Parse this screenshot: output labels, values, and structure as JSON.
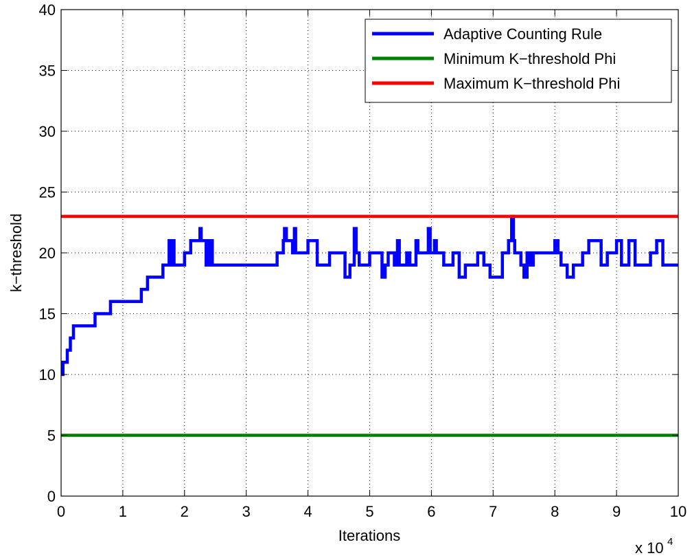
{
  "chart_data": {
    "type": "line",
    "title": "",
    "xlabel": "Iterations",
    "ylabel": "k−threshold",
    "x_multiplier_label": {
      "base": "x 10",
      "exponent": "4"
    },
    "xlim": [
      0,
      10
    ],
    "ylim": [
      0,
      40
    ],
    "x_ticks": [
      0,
      1,
      2,
      3,
      4,
      5,
      6,
      7,
      8,
      9,
      10
    ],
    "y_ticks": [
      0,
      5,
      10,
      15,
      20,
      25,
      30,
      35,
      40
    ],
    "x_tick_labels": [
      "0",
      "1",
      "2",
      "3",
      "4",
      "5",
      "6",
      "7",
      "8",
      "9",
      "10"
    ],
    "y_tick_labels": [
      "0",
      "5",
      "10",
      "15",
      "20",
      "25",
      "30",
      "35",
      "40"
    ],
    "grid": true,
    "legend_position": "top-right",
    "series": [
      {
        "name": "Adaptive Counting Rule",
        "color": "#0000ff",
        "step": true,
        "points": [
          [
            0,
            10
          ],
          [
            0.03,
            11
          ],
          [
            0.1,
            12
          ],
          [
            0.15,
            13
          ],
          [
            0.2,
            14
          ],
          [
            0.55,
            15
          ],
          [
            0.8,
            16
          ],
          [
            1.3,
            17
          ],
          [
            1.4,
            18
          ],
          [
            1.65,
            19
          ],
          [
            1.75,
            21
          ],
          [
            1.78,
            19
          ],
          [
            1.8,
            21
          ],
          [
            1.83,
            19
          ],
          [
            2.0,
            20
          ],
          [
            2.1,
            21
          ],
          [
            2.25,
            22
          ],
          [
            2.27,
            21
          ],
          [
            2.35,
            19
          ],
          [
            2.4,
            21
          ],
          [
            2.45,
            19
          ],
          [
            3.5,
            20
          ],
          [
            3.6,
            21
          ],
          [
            3.62,
            22
          ],
          [
            3.65,
            21
          ],
          [
            3.75,
            20
          ],
          [
            3.78,
            22
          ],
          [
            3.8,
            20
          ],
          [
            4.0,
            21
          ],
          [
            4.15,
            19
          ],
          [
            4.35,
            20
          ],
          [
            4.6,
            18
          ],
          [
            4.68,
            19
          ],
          [
            4.75,
            22
          ],
          [
            4.78,
            20
          ],
          [
            4.83,
            19
          ],
          [
            5.0,
            20
          ],
          [
            5.2,
            18
          ],
          [
            5.25,
            19
          ],
          [
            5.3,
            20
          ],
          [
            5.4,
            19
          ],
          [
            5.45,
            21
          ],
          [
            5.48,
            19
          ],
          [
            5.6,
            20
          ],
          [
            5.65,
            19
          ],
          [
            5.75,
            21
          ],
          [
            5.78,
            20
          ],
          [
            5.95,
            22
          ],
          [
            5.98,
            20
          ],
          [
            6.05,
            21
          ],
          [
            6.08,
            20
          ],
          [
            6.2,
            19
          ],
          [
            6.35,
            20
          ],
          [
            6.45,
            18
          ],
          [
            6.55,
            19
          ],
          [
            6.75,
            20
          ],
          [
            6.85,
            19
          ],
          [
            6.95,
            18
          ],
          [
            7.15,
            20
          ],
          [
            7.25,
            21
          ],
          [
            7.3,
            23
          ],
          [
            7.33,
            21
          ],
          [
            7.35,
            20
          ],
          [
            7.45,
            19
          ],
          [
            7.5,
            18
          ],
          [
            7.55,
            20
          ],
          [
            7.6,
            19
          ],
          [
            7.65,
            20
          ],
          [
            8.0,
            21
          ],
          [
            8.05,
            20
          ],
          [
            8.1,
            19
          ],
          [
            8.2,
            18
          ],
          [
            8.3,
            19
          ],
          [
            8.45,
            20
          ],
          [
            8.55,
            21
          ],
          [
            8.75,
            19
          ],
          [
            8.85,
            20
          ],
          [
            9.0,
            21
          ],
          [
            9.08,
            19
          ],
          [
            9.2,
            21
          ],
          [
            9.3,
            19
          ],
          [
            9.55,
            20
          ],
          [
            9.65,
            21
          ],
          [
            9.75,
            19
          ],
          [
            10.0,
            19
          ]
        ]
      },
      {
        "name": "Minimum K−threshold Phi",
        "color": "#008000",
        "step": false,
        "points": [
          [
            0,
            5
          ],
          [
            10,
            5
          ]
        ]
      },
      {
        "name": "Maximum K−threshold Phi",
        "color": "#ff0000",
        "step": false,
        "points": [
          [
            0,
            23
          ],
          [
            10,
            23
          ]
        ]
      }
    ]
  }
}
